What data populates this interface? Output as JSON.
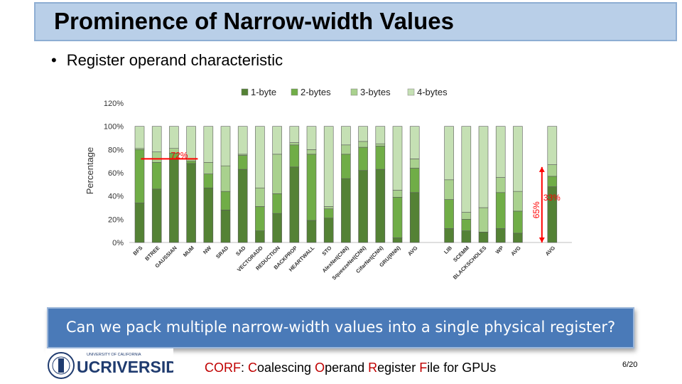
{
  "slide": {
    "title": "Prominence of Narrow-width Values",
    "bullet": "Register operand characteristic",
    "banner": "Can we pack multiple narrow-width values into a single physical register?",
    "footer": {
      "acronym": "CORF",
      "sep": ": ",
      "c_letter": "C",
      "c_rest": "oalescing ",
      "o_letter": "O",
      "o_rest": "perand ",
      "r_letter": "R",
      "r_rest": "egister ",
      "f_letter": "F",
      "f_rest": "ile for GPUs"
    },
    "page": "6/20",
    "logo": {
      "small": "UNIVERSITY OF CALIFORNIA",
      "main_uc": "UC",
      "main_rest": "RIVERSIDE"
    }
  },
  "colors": {
    "one_byte": "#548235",
    "two_byte": "#70ad47",
    "three_byte": "#a9d18e",
    "four_byte": "#c5e0b4",
    "annotation": "#ff0000"
  },
  "chart_data": {
    "type": "bar",
    "stacked": true,
    "ylabel": "Percentage",
    "ylim": [
      0,
      120
    ],
    "yticks": [
      "0%",
      "20%",
      "40%",
      "60%",
      "80%",
      "100%",
      "120%"
    ],
    "legend_position": "top",
    "categories": [
      "BFS",
      "BTREE",
      "GAUSSIAN",
      "MUM",
      "NW",
      "SRAD",
      "SAD",
      "VECTORADD",
      "REDUCTION",
      "BACKPROP",
      "HEARTWALL",
      "STO",
      "AlexNet(CNN)",
      "SqueezeNet(CNN)",
      "CifarNet(CNN)",
      "GRU(RNN)",
      "AVG",
      "",
      "LIB",
      "SCEMM",
      "BLACKSCHOLES",
      "WP",
      "AVG",
      "",
      "AVG"
    ],
    "series": [
      {
        "name": "1-byte",
        "values": [
          34,
          46,
          72,
          68,
          47,
          28,
          63,
          10,
          25,
          65,
          19,
          21,
          55,
          62,
          63,
          4,
          43,
          0,
          12,
          10,
          9,
          12,
          8,
          0,
          48
        ]
      },
      {
        "name": "2-bytes",
        "values": [
          46,
          23,
          5,
          2,
          12,
          16,
          12,
          21,
          17,
          19,
          57,
          8,
          21,
          20,
          20,
          35,
          21,
          0,
          25,
          10,
          0,
          31,
          19,
          0,
          9
        ]
      },
      {
        "name": "3-bytes",
        "values": [
          1,
          9,
          4,
          2,
          10,
          22,
          1,
          16,
          34,
          2,
          4,
          2,
          8,
          5,
          2,
          6,
          8,
          0,
          17,
          6,
          21,
          13,
          17,
          0,
          10
        ]
      },
      {
        "name": "4-bytes",
        "values": [
          19,
          22,
          19,
          28,
          31,
          34,
          24,
          53,
          24,
          14,
          20,
          69,
          16,
          13,
          15,
          55,
          28,
          0,
          46,
          74,
          70,
          44,
          56,
          0,
          33
        ]
      }
    ],
    "annotations": [
      {
        "label": "72%",
        "category": "GAUSSIAN"
      },
      {
        "label": "65%",
        "category": "AVG"
      },
      {
        "label": "33%",
        "category": "AVG"
      }
    ]
  }
}
